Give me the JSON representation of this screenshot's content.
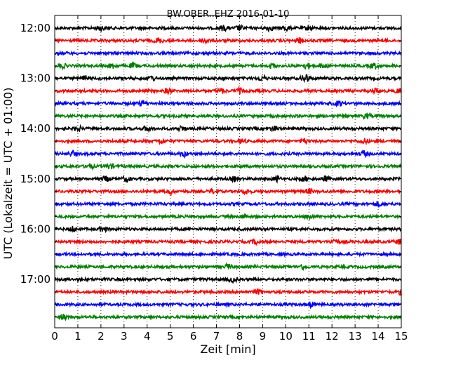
{
  "chart_data": {
    "type": "line",
    "title": "BW.OBER..EHZ 2016-01-10",
    "xlabel": "Zeit  [min]",
    "ylabel": "UTC (Lokalzeit = UTC + 01:00)",
    "xlim": [
      0,
      15
    ],
    "x_ticks": [
      "0",
      "1",
      "2",
      "3",
      "4",
      "5",
      "6",
      "7",
      "8",
      "9",
      "10",
      "11",
      "12",
      "13",
      "14",
      "15"
    ],
    "hour_ticks": [
      "12:00",
      "13:00",
      "14:00",
      "15:00",
      "16:00",
      "17:00"
    ],
    "grid": "vertical dotted at each minute",
    "row_minutes": 15,
    "series_colors": [
      "#000000",
      "#ff0000",
      "#0000ff",
      "#008000"
    ],
    "rows": [
      {
        "start": "12:00",
        "events": [
          2.0,
          7.3,
          8.0,
          9.3,
          10.0,
          11.0
        ]
      },
      {
        "start": "12:15",
        "events": [
          4.5,
          6.5,
          10.6
        ]
      },
      {
        "start": "12:30",
        "events": []
      },
      {
        "start": "12:45",
        "events": [
          0.3,
          2.5,
          3.4,
          9.4,
          10.9,
          11.6,
          13.8
        ]
      },
      {
        "start": "13:00",
        "events": [
          1.3,
          4.2,
          9.0,
          10.8,
          10.9
        ]
      },
      {
        "start": "13:15",
        "events": [
          4.9,
          7.2,
          8.0,
          13.9,
          14.9
        ]
      },
      {
        "start": "13:30",
        "events": [
          3.8,
          12.3
        ]
      },
      {
        "start": "13:45",
        "events": [
          13.5
        ]
      },
      {
        "start": "14:00",
        "events": [
          1.0,
          4.0,
          5.5,
          9.5
        ]
      },
      {
        "start": "14:15",
        "events": [
          4.6,
          8.1,
          10.8,
          13.4
        ]
      },
      {
        "start": "14:30",
        "events": [
          0.8,
          5.6,
          13.4
        ]
      },
      {
        "start": "14:45",
        "events": [
          1.5,
          2.4
        ]
      },
      {
        "start": "15:00",
        "events": [
          2.2,
          3.1,
          7.8,
          9.6,
          10.8,
          11.7
        ]
      },
      {
        "start": "15:15",
        "events": [
          5.0,
          6.9,
          8.3,
          11.0
        ]
      },
      {
        "start": "15:30",
        "events": [
          14.0
        ]
      },
      {
        "start": "15:45",
        "events": [
          8.2,
          11.0
        ]
      },
      {
        "start": "16:00",
        "events": [
          0.8,
          2.1
        ]
      },
      {
        "start": "16:15",
        "events": [
          8.7,
          12.1,
          14.9
        ]
      },
      {
        "start": "16:30",
        "events": []
      },
      {
        "start": "16:45",
        "events": [
          7.5,
          10.7
        ]
      },
      {
        "start": "17:00",
        "events": [
          7.7
        ]
      },
      {
        "start": "17:15",
        "events": [
          8.8,
          15.0
        ]
      },
      {
        "start": "17:30",
        "events": [
          11.1
        ]
      },
      {
        "start": "17:45",
        "events": [
          0.4
        ]
      }
    ]
  }
}
